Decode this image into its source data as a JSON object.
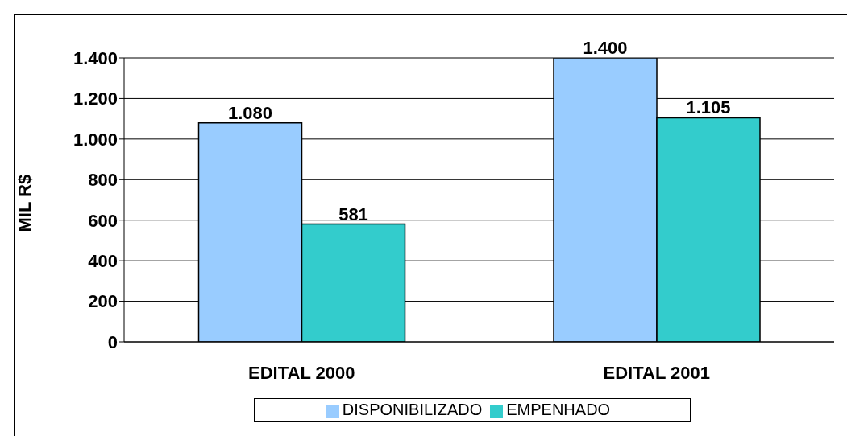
{
  "chart_data": {
    "type": "bar",
    "ylabel": "MIL R$",
    "categories": [
      "EDITAL 2000",
      "EDITAL 2001"
    ],
    "series": [
      {
        "name": "DISPONIBILIZADO",
        "color": "#99ccff",
        "values": [
          1080,
          1400
        ],
        "value_labels": [
          "1.080",
          "1.400"
        ]
      },
      {
        "name": "EMPENHADO",
        "color": "#33cccc",
        "values": [
          581,
          1105
        ],
        "value_labels": [
          "581",
          "1.105"
        ]
      }
    ],
    "ylim": [
      0,
      1400
    ],
    "yticks": [
      0,
      200,
      400,
      600,
      800,
      {
        "value": 1000,
        "label": "1.000"
      },
      {
        "value": 1200,
        "label": "1.200"
      },
      {
        "value": 1400,
        "label": "1.400"
      }
    ],
    "grid": "y",
    "legend": "bottom"
  }
}
